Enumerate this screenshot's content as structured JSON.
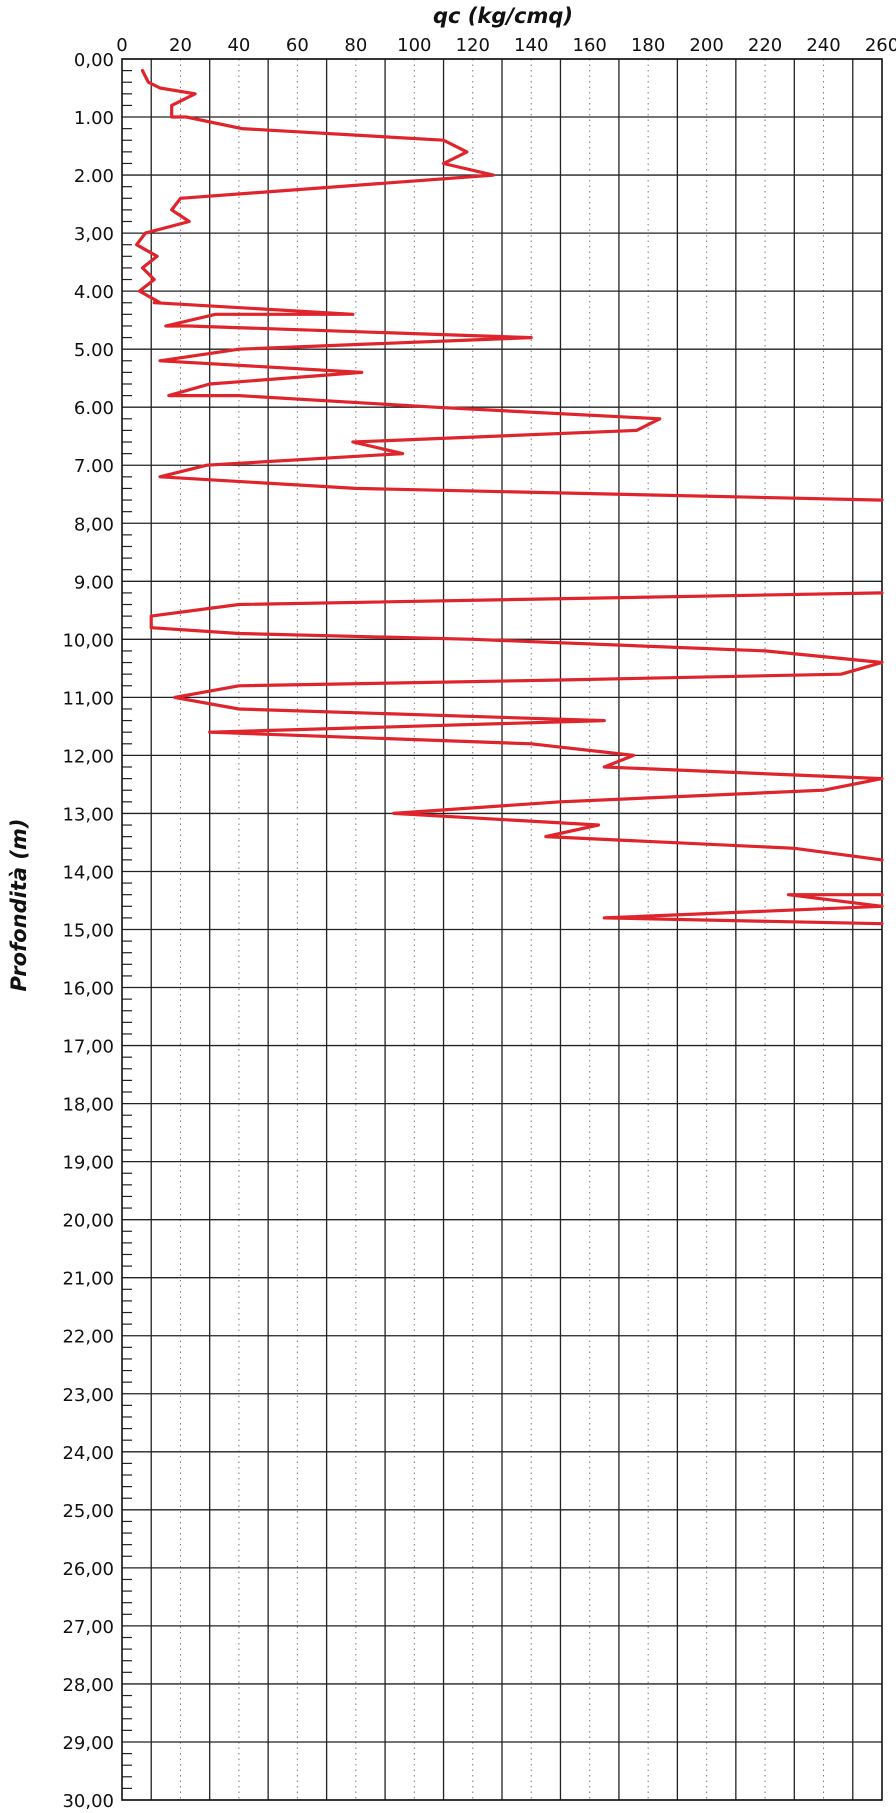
{
  "chart_data": {
    "type": "line",
    "xlabel": "qc (kg/cmq)",
    "ylabel": "Profondità (m)",
    "xlim": [
      0,
      260
    ],
    "ylim": [
      0,
      30
    ],
    "x_axis_position": "top",
    "y_inverted": true,
    "grid": true,
    "x_tick_labels": [
      "0",
      "20",
      "40",
      "60",
      "80",
      "100",
      "120",
      "140",
      "160",
      "180",
      "200",
      "220",
      "240",
      "260"
    ],
    "y_tick_labels": [
      "0,00",
      "1.00",
      "2.00",
      "3,00",
      "4.00",
      "5.00",
      "6.00",
      "7.00",
      "8,00",
      "9.00",
      "10,00",
      "11,00",
      "12,00",
      "13,00",
      "14,00",
      "15,00",
      "16,00",
      "17,00",
      "18,00",
      "19,00",
      "20,00",
      "21,00",
      "22,00",
      "23,00",
      "24,00",
      "25,00",
      "26,00",
      "27,00",
      "28,00",
      "29,00",
      "30,00"
    ],
    "series": [
      {
        "color": "#e0242c",
        "points": [
          [
            7,
            0.2
          ],
          [
            9,
            0.4
          ],
          [
            13,
            0.5
          ],
          [
            25,
            0.6
          ],
          [
            17,
            0.8
          ],
          [
            17,
            1.0
          ],
          [
            22,
            1.0
          ],
          [
            41,
            1.2
          ],
          [
            110,
            1.4
          ],
          [
            118,
            1.6
          ],
          [
            110,
            1.8
          ],
          [
            127,
            2.0
          ],
          [
            20,
            2.4
          ],
          [
            17,
            2.6
          ],
          [
            23,
            2.8
          ],
          [
            8,
            3.0
          ],
          [
            5,
            3.2
          ],
          [
            12,
            3.4
          ],
          [
            7,
            3.6
          ],
          [
            11,
            3.8
          ],
          [
            6,
            4.0
          ],
          [
            13,
            4.2
          ],
          [
            11,
            4.2
          ],
          [
            79,
            4.4
          ],
          [
            32,
            4.4
          ],
          [
            15,
            4.6
          ],
          [
            23,
            4.6
          ],
          [
            140,
            4.8
          ],
          [
            40,
            5.0
          ],
          [
            13,
            5.2
          ],
          [
            82,
            5.4
          ],
          [
            30,
            5.6
          ],
          [
            16,
            5.8
          ],
          [
            40,
            5.8
          ],
          [
            107,
            6.0
          ],
          [
            184,
            6.2
          ],
          [
            176,
            6.4
          ],
          [
            79,
            6.6
          ],
          [
            96,
            6.8
          ],
          [
            29,
            7.0
          ],
          [
            13,
            7.2
          ],
          [
            80,
            7.4
          ],
          [
            260,
            7.6
          ]
        ]
      },
      {
        "color": "#e0242c",
        "points": [
          [
            260,
            9.2
          ],
          [
            40,
            9.4
          ],
          [
            10,
            9.6
          ],
          [
            10,
            9.8
          ],
          [
            40,
            9.9
          ],
          [
            120,
            10.0
          ],
          [
            220,
            10.2
          ],
          [
            260,
            10.4
          ],
          [
            246,
            10.6
          ],
          [
            150,
            10.7
          ],
          [
            40,
            10.8
          ],
          [
            18,
            11.0
          ],
          [
            40,
            11.2
          ],
          [
            165,
            11.4
          ],
          [
            30,
            11.6
          ],
          [
            140,
            11.8
          ],
          [
            175,
            12.0
          ],
          [
            165,
            12.2
          ],
          [
            260,
            12.4
          ],
          [
            240,
            12.6
          ],
          [
            150,
            12.8
          ],
          [
            93,
            13.0
          ],
          [
            163,
            13.2
          ],
          [
            145,
            13.4
          ],
          [
            230,
            13.6
          ],
          [
            260,
            13.8
          ]
        ]
      },
      {
        "color": "#e0242c",
        "points": [
          [
            260,
            14.4
          ],
          [
            228,
            14.4
          ],
          [
            260,
            14.6
          ],
          [
            165,
            14.8
          ],
          [
            260,
            14.9
          ]
        ]
      }
    ]
  }
}
